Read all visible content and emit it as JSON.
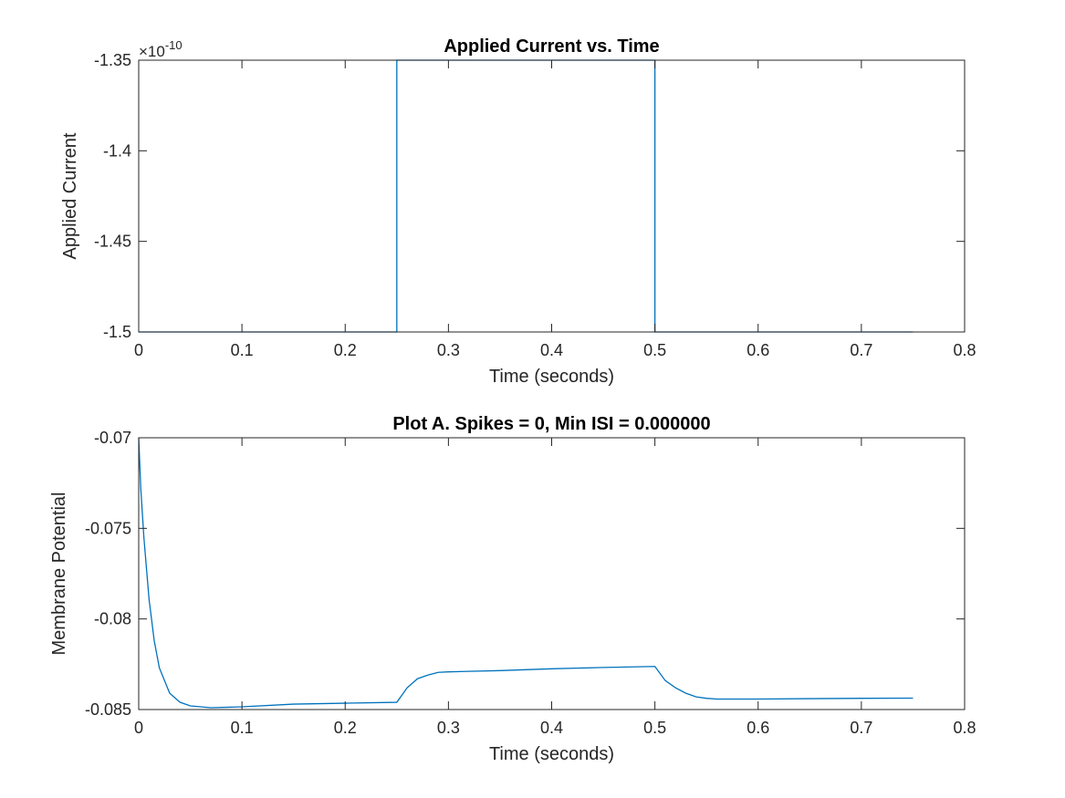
{
  "chart_data": [
    {
      "type": "line",
      "title": "Applied Current vs. Time",
      "xlabel": "Time (seconds)",
      "ylabel": "Applied Current",
      "y_exponent_label": "×10",
      "y_exponent_power": "-10",
      "xlim": [
        0,
        0.8
      ],
      "ylim": [
        -1.5,
        -1.35
      ],
      "xticks": [
        "0",
        "0.1",
        "0.2",
        "0.3",
        "0.4",
        "0.5",
        "0.6",
        "0.7",
        "0.8"
      ],
      "yticks": [
        "-1.5",
        "-1.45",
        "-1.4",
        "-1.35"
      ],
      "grid": false,
      "line_color": "#0072BD",
      "series": [
        {
          "x": [
            0,
            0.25,
            0.25,
            0.5,
            0.5,
            0.75
          ],
          "y": [
            -1.5,
            -1.5,
            -1.35,
            -1.35,
            -1.5,
            -1.5
          ]
        }
      ]
    },
    {
      "type": "line",
      "title": "Plot A. Spikes = 0, Min ISI = 0.000000",
      "xlabel": "Time (seconds)",
      "ylabel": "Membrane Potential",
      "xlim": [
        0,
        0.8
      ],
      "ylim": [
        -0.085,
        -0.07
      ],
      "xticks": [
        "0",
        "0.1",
        "0.2",
        "0.3",
        "0.4",
        "0.5",
        "0.6",
        "0.7",
        "0.8"
      ],
      "yticks": [
        "-0.085",
        "-0.08",
        "-0.075",
        "-0.07"
      ],
      "grid": false,
      "line_color": "#0072BD",
      "series": [
        {
          "x": [
            0,
            0.002,
            0.005,
            0.01,
            0.015,
            0.02,
            0.03,
            0.04,
            0.05,
            0.06,
            0.07,
            0.1,
            0.15,
            0.2,
            0.25,
            0.26,
            0.27,
            0.28,
            0.29,
            0.3,
            0.35,
            0.4,
            0.45,
            0.5,
            0.51,
            0.52,
            0.53,
            0.54,
            0.55,
            0.56,
            0.6,
            0.65,
            0.7,
            0.75
          ],
          "y": [
            -0.07,
            -0.0728,
            -0.0755,
            -0.0789,
            -0.0812,
            -0.0827,
            -0.0841,
            -0.0846,
            -0.0848,
            -0.08485,
            -0.0849,
            -0.08485,
            -0.0847,
            -0.08465,
            -0.0846,
            -0.0838,
            -0.0833,
            -0.0831,
            -0.08295,
            -0.08292,
            -0.08285,
            -0.08275,
            -0.08268,
            -0.08262,
            -0.0834,
            -0.0838,
            -0.0841,
            -0.0843,
            -0.08438,
            -0.08442,
            -0.08442,
            -0.0844,
            -0.08438,
            -0.08437
          ]
        }
      ]
    }
  ]
}
